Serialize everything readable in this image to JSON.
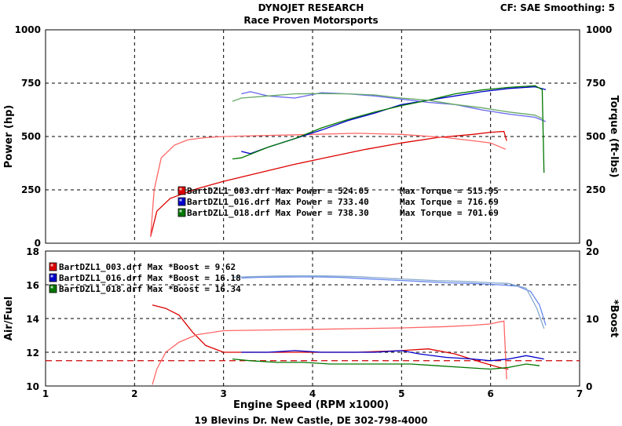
{
  "header": {
    "title": "DYNOJET RESEARCH",
    "subtitle": "Race Proven Motorsports",
    "correction": "CF: SAE  Smoothing: 5"
  },
  "footer": {
    "address": "19 Blevins Dr. New Castle, DE 302-798-4000"
  },
  "colors": {
    "run_003": "#dd0000",
    "run_016": "#0000cc",
    "run_018": "#007700",
    "afr_target": "#cc0000"
  },
  "chart_data": [
    {
      "type": "line",
      "title": "",
      "xlabel": "",
      "ylabel": "Power (hp)",
      "y2label": "Torque (ft-lbs)",
      "xlim": [
        1,
        7
      ],
      "ylim": [
        0,
        1000
      ],
      "y2lim": [
        0,
        1000
      ],
      "grid": true,
      "yticks": [
        "0",
        "250",
        "500",
        "750",
        "1000"
      ],
      "y2ticks": [
        "0",
        "250",
        "500",
        "750",
        "1000"
      ],
      "legend": [
        {
          "run": "BartDZL1_003.drf",
          "text": "BartDZL1_003.drf Max Power = 524.05",
          "torque_text": "Max Torque = 515.95",
          "color": "#dd0000"
        },
        {
          "run": "BartDZL1_016.drf",
          "text": "BartDZL1_016.drf Max Power = 733.40",
          "torque_text": "Max Torque = 716.69",
          "color": "#0000cc"
        },
        {
          "run": "BartDZL1_018.drf",
          "text": "BartDZL1_018.drf Max Power = 738.30",
          "torque_text": "Max Torque = 701.69",
          "color": "#007700"
        }
      ],
      "series": [
        {
          "name": "BartDZL1_003.drf",
          "measure": "power",
          "color": "#dd0000",
          "x": [
            2.18,
            2.25,
            2.4,
            2.7,
            3.0,
            3.4,
            3.8,
            4.2,
            4.6,
            5.0,
            5.4,
            5.8,
            6.0,
            6.15,
            6.18
          ],
          "y": [
            30,
            150,
            210,
            255,
            290,
            330,
            370,
            405,
            440,
            470,
            495,
            510,
            520,
            524,
            480
          ]
        },
        {
          "name": "BartDZL1_003.drf",
          "measure": "torque",
          "color": "#ff6666",
          "x": [
            2.18,
            2.22,
            2.3,
            2.45,
            2.6,
            2.8,
            3.0,
            3.5,
            4.0,
            4.5,
            5.0,
            5.5,
            5.8,
            6.0,
            6.17
          ],
          "y": [
            30,
            250,
            400,
            460,
            485,
            495,
            500,
            505,
            510,
            515,
            510,
            495,
            480,
            470,
            440
          ]
        },
        {
          "name": "BartDZL1_016.drf",
          "measure": "power",
          "color": "#0000cc",
          "x": [
            3.2,
            3.3,
            3.5,
            3.8,
            4.1,
            4.4,
            4.7,
            5.0,
            5.3,
            5.6,
            5.9,
            6.2,
            6.5,
            6.62
          ],
          "y": [
            430,
            420,
            450,
            490,
            530,
            575,
            610,
            650,
            670,
            690,
            710,
            725,
            733,
            720
          ]
        },
        {
          "name": "BartDZL1_016.drf",
          "measure": "torque",
          "color": "#6666ee",
          "x": [
            3.2,
            3.3,
            3.5,
            3.8,
            4.1,
            4.4,
            4.7,
            5.0,
            5.3,
            5.6,
            5.9,
            6.2,
            6.5,
            6.62
          ],
          "y": [
            700,
            710,
            690,
            680,
            705,
            700,
            690,
            675,
            660,
            650,
            625,
            605,
            590,
            570
          ]
        },
        {
          "name": "BartDZL1_018.drf",
          "measure": "power",
          "color": "#007700",
          "x": [
            3.1,
            3.2,
            3.5,
            3.8,
            4.1,
            4.4,
            4.7,
            5.0,
            5.3,
            5.6,
            5.9,
            6.2,
            6.5,
            6.58,
            6.6
          ],
          "y": [
            395,
            400,
            450,
            490,
            540,
            580,
            615,
            645,
            670,
            700,
            718,
            730,
            738,
            720,
            330
          ]
        },
        {
          "name": "BartDZL1_018.drf",
          "measure": "torque",
          "color": "#66aa66",
          "x": [
            3.1,
            3.2,
            3.5,
            3.8,
            4.1,
            4.4,
            4.7,
            5.0,
            5.3,
            5.6,
            5.9,
            6.2,
            6.5,
            6.6
          ],
          "y": [
            665,
            680,
            690,
            700,
            701,
            700,
            695,
            680,
            670,
            650,
            635,
            615,
            600,
            580
          ]
        }
      ]
    },
    {
      "type": "line",
      "title": "",
      "xlabel": "Engine Speed (RPM x1000)",
      "ylabel": "Air/Fuel",
      "y2label": "*Boost",
      "xlim": [
        1,
        7
      ],
      "ylim": [
        10,
        18
      ],
      "y2lim": [
        0,
        20
      ],
      "grid": true,
      "xticks": [
        "1",
        "2",
        "3",
        "4",
        "5",
        "6",
        "7"
      ],
      "yticks": [
        "10",
        "12",
        "14",
        "16",
        "18"
      ],
      "y2ticks": [
        "0",
        "10",
        "20"
      ],
      "reference_line": {
        "y": 11.5,
        "color": "#cc0000",
        "style": "dashed"
      },
      "legend": [
        {
          "run": "BartDZL1_003.drf",
          "text": "BartDZL1_003.drf Max *Boost = 9.62",
          "color": "#dd0000"
        },
        {
          "run": "BartDZL1_016.drf",
          "text": "BartDZL1_016.drf Max *Boost = 16.18",
          "color": "#0000cc"
        },
        {
          "run": "BartDZL1_018.drf",
          "text": "BartDZL1_018.drf Max *Boost = 16.34",
          "color": "#007700"
        }
      ],
      "series": [
        {
          "name": "BartDZL1_003.drf",
          "measure": "afr",
          "axis": "left",
          "color": "#dd0000",
          "x": [
            2.2,
            2.35,
            2.5,
            2.65,
            2.8,
            3.0,
            3.5,
            4.0,
            4.5,
            5.0,
            5.3,
            5.6,
            5.9,
            6.1,
            6.2
          ],
          "y": [
            14.8,
            14.6,
            14.2,
            13.2,
            12.4,
            12.0,
            12.0,
            12.0,
            12.0,
            12.1,
            12.2,
            11.9,
            11.4,
            11.1,
            11.0
          ]
        },
        {
          "name": "BartDZL1_003.drf",
          "measure": "boost",
          "axis": "right",
          "color": "#ff6666",
          "x": [
            2.2,
            2.25,
            2.35,
            2.5,
            2.7,
            3.0,
            3.5,
            4.0,
            4.5,
            5.0,
            5.5,
            5.8,
            6.0,
            6.1,
            6.15,
            6.18
          ],
          "y": [
            0.2,
            2.5,
            5.0,
            6.5,
            7.6,
            8.2,
            8.3,
            8.4,
            8.5,
            8.6,
            8.8,
            9.0,
            9.2,
            9.5,
            9.62,
            1.0
          ]
        },
        {
          "name": "BartDZL1_016.drf",
          "measure": "afr",
          "axis": "left",
          "color": "#0000cc",
          "x": [
            3.2,
            3.5,
            3.8,
            4.1,
            4.4,
            4.7,
            5.0,
            5.2,
            5.5,
            5.8,
            6.0,
            6.2,
            6.4,
            6.6
          ],
          "y": [
            12.0,
            12.0,
            12.1,
            12.0,
            12.0,
            12.0,
            12.1,
            11.9,
            11.7,
            11.6,
            11.5,
            11.6,
            11.8,
            11.6
          ]
        },
        {
          "name": "BartDZL1_016.drf",
          "measure": "boost",
          "axis": "right",
          "color": "#6688ee",
          "x": [
            3.2,
            3.4,
            3.7,
            4.0,
            4.3,
            4.6,
            4.9,
            5.2,
            5.5,
            5.8,
            6.1,
            6.3,
            6.45,
            6.55,
            6.62
          ],
          "y": [
            16.0,
            16.1,
            16.15,
            16.18,
            16.1,
            15.9,
            15.7,
            15.5,
            15.3,
            15.2,
            15.0,
            14.8,
            14.0,
            12.0,
            9.0
          ]
        },
        {
          "name": "BartDZL1_018.drf",
          "measure": "afr",
          "axis": "left",
          "color": "#007700",
          "x": [
            3.1,
            3.3,
            3.6,
            3.9,
            4.2,
            4.5,
            4.8,
            5.1,
            5.4,
            5.7,
            6.0,
            6.2,
            6.4,
            6.55
          ],
          "y": [
            11.6,
            11.5,
            11.4,
            11.4,
            11.3,
            11.3,
            11.3,
            11.3,
            11.2,
            11.1,
            11.0,
            11.1,
            11.3,
            11.2
          ]
        },
        {
          "name": "BartDZL1_018.drf",
          "measure": "boost",
          "axis": "right",
          "color": "#88aacc",
          "x": [
            3.1,
            3.3,
            3.6,
            3.9,
            4.2,
            4.5,
            4.8,
            5.1,
            5.4,
            5.7,
            6.0,
            6.2,
            6.4,
            6.52,
            6.6
          ],
          "y": [
            16.1,
            16.2,
            16.3,
            16.34,
            16.3,
            16.2,
            16.0,
            15.8,
            15.6,
            15.5,
            15.3,
            15.2,
            14.5,
            11.5,
            8.5
          ]
        }
      ]
    }
  ]
}
